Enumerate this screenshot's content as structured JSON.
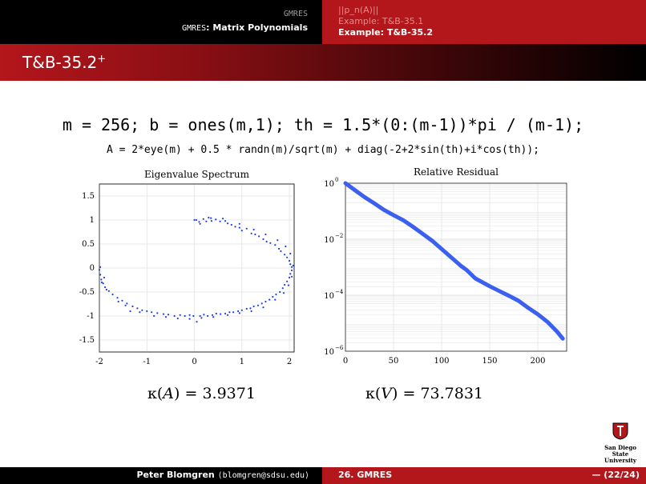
{
  "header": {
    "section_small": "GMRES",
    "section_mono": "GMRES",
    "section_title": ": Matrix Polynomials",
    "nav_items": [
      {
        "label": "||p_n(A)||",
        "active": false
      },
      {
        "label": "Example: T&B-35.1",
        "active": false
      },
      {
        "label": "Example: T&B-35.2",
        "active": true
      }
    ]
  },
  "slide": {
    "title": "T&B-35.2",
    "title_sup": "+",
    "code_line1": "m = 256; b = ones(m,1); th = 1.5*(0:(m-1))*pi / (m-1);",
    "code_line2": "A = 2*eye(m) + 0.5 * randn(m)/sqrt(m) + diag(-2+2*sin(th)+i*cos(th));",
    "kappa_A": {
      "symbol": "κ",
      "arg": "A",
      "value": "= 3.9371"
    },
    "kappa_V": {
      "symbol": "κ",
      "arg": "V",
      "value": "= 73.7831"
    }
  },
  "logo": {
    "line1": "San Diego State",
    "line2": "University"
  },
  "footer": {
    "author": "Peter Blomgren",
    "email": "⟨blomgren@sdsu.edu⟩",
    "section": "26. GMRES",
    "page": "— (22/24)"
  },
  "colors": {
    "accent_red": "#b3161b",
    "marker_blue": "#1f3fe8",
    "line_blue": "#3b5ff0"
  },
  "chart_data": [
    {
      "type": "scatter",
      "title": "Eigenvalue Spectrum",
      "xlim": [
        -2,
        2.1
      ],
      "ylim": [
        -1.75,
        1.75
      ],
      "xticks": [
        -2,
        -1,
        0,
        1,
        2
      ],
      "xtick_labels": [
        "-2",
        "-1",
        "0",
        "1",
        "2"
      ],
      "yticks": [
        1.5,
        1,
        0.5,
        0,
        -0.5,
        -1,
        -1.5
      ],
      "ytick_labels": [
        "1.5",
        "1",
        "0.5",
        "0",
        "-0.5",
        "-1",
        "-1.5"
      ],
      "grid": true,
      "series": [
        {
          "points": [
            [
              -0.0,
              1.0
            ],
            [
              0.04,
              1.0
            ],
            [
              0.19,
              1.02
            ],
            [
              0.12,
              0.92
            ],
            [
              0.25,
              0.97
            ],
            [
              0.3,
              1.05
            ],
            [
              0.36,
              0.98
            ],
            [
              0.45,
              1.01
            ],
            [
              0.54,
              0.97
            ],
            [
              0.6,
              1.03
            ],
            [
              0.7,
              0.93
            ],
            [
              0.78,
              0.9
            ],
            [
              0.86,
              0.86
            ],
            [
              0.95,
              0.84
            ],
            [
              1.0,
              0.78
            ],
            [
              1.1,
              0.82
            ],
            [
              1.2,
              0.72
            ],
            [
              1.28,
              0.7
            ],
            [
              1.36,
              0.66
            ],
            [
              1.45,
              0.6
            ],
            [
              1.52,
              0.55
            ],
            [
              1.6,
              0.52
            ],
            [
              1.7,
              0.48
            ],
            [
              1.78,
              0.4
            ],
            [
              1.82,
              0.35
            ],
            [
              1.9,
              0.28
            ],
            [
              1.95,
              0.22
            ],
            [
              2.0,
              0.15
            ],
            [
              2.02,
              0.08
            ],
            [
              2.05,
              0.02
            ],
            [
              2.05,
              -0.05
            ],
            [
              2.02,
              -0.12
            ],
            [
              2.0,
              -0.2
            ],
            [
              1.95,
              -0.28
            ],
            [
              1.9,
              -0.35
            ],
            [
              1.86,
              -0.42
            ],
            [
              1.8,
              -0.5
            ],
            [
              1.72,
              -0.55
            ],
            [
              1.65,
              -0.6
            ],
            [
              1.58,
              -0.66
            ],
            [
              1.5,
              -0.7
            ],
            [
              1.42,
              -0.74
            ],
            [
              1.34,
              -0.78
            ],
            [
              1.25,
              -0.8
            ],
            [
              1.18,
              -0.84
            ],
            [
              1.1,
              -0.85
            ],
            [
              1.0,
              -0.88
            ],
            [
              0.92,
              -0.9
            ],
            [
              0.82,
              -0.92
            ],
            [
              0.74,
              -0.92
            ],
            [
              0.65,
              -0.95
            ],
            [
              0.55,
              -0.96
            ],
            [
              0.46,
              -0.95
            ],
            [
              0.38,
              -0.98
            ],
            [
              0.28,
              -1.0
            ],
            [
              0.2,
              -0.97
            ],
            [
              0.12,
              -1.0
            ],
            [
              0.05,
              -1.12
            ],
            [
              -0.02,
              -1.0
            ],
            [
              -0.1,
              -0.98
            ],
            [
              -0.2,
              -1.0
            ],
            [
              -0.3,
              -0.98
            ],
            [
              -0.42,
              -1.0
            ],
            [
              -0.55,
              -0.97
            ],
            [
              -0.65,
              -0.96
            ],
            [
              -0.78,
              -0.94
            ],
            [
              -0.9,
              -0.92
            ],
            [
              -1.0,
              -0.9
            ],
            [
              -1.1,
              -0.88
            ],
            [
              -1.2,
              -0.84
            ],
            [
              -1.3,
              -0.8
            ],
            [
              -1.42,
              -0.74
            ],
            [
              -1.52,
              -0.68
            ],
            [
              -1.62,
              -0.62
            ],
            [
              -1.72,
              -0.55
            ],
            [
              -1.8,
              -0.48
            ],
            [
              -1.88,
              -0.4
            ],
            [
              -1.92,
              -0.32
            ],
            [
              -1.96,
              -0.24
            ],
            [
              -1.98,
              -0.14
            ],
            [
              -2.0,
              -0.04
            ],
            [
              -1.98,
              0.02
            ],
            [
              -1.95,
              -0.3
            ],
            [
              -1.9,
              -0.2
            ],
            [
              -1.85,
              -0.45
            ],
            [
              -1.6,
              -0.7
            ],
            [
              -1.45,
              -0.78
            ],
            [
              -1.35,
              -0.9
            ],
            [
              -1.15,
              -0.92
            ],
            [
              -0.85,
              -1.0
            ],
            [
              -0.6,
              -1.02
            ],
            [
              -0.35,
              -1.05
            ],
            [
              -0.1,
              -1.06
            ],
            [
              0.15,
              -1.04
            ],
            [
              0.4,
              -1.02
            ],
            [
              0.7,
              -0.98
            ],
            [
              0.95,
              -0.94
            ],
            [
              1.2,
              -0.9
            ],
            [
              1.45,
              -0.82
            ],
            [
              1.7,
              -0.66
            ],
            [
              1.88,
              -0.52
            ],
            [
              1.98,
              -0.36
            ],
            [
              2.05,
              -0.18
            ],
            [
              2.08,
              0.05
            ],
            [
              2.02,
              0.3
            ],
            [
              1.92,
              0.45
            ],
            [
              1.75,
              0.58
            ],
            [
              1.5,
              0.7
            ],
            [
              1.25,
              0.8
            ],
            [
              0.95,
              0.92
            ],
            [
              0.65,
              0.98
            ],
            [
              0.35,
              1.04
            ],
            [
              0.1,
              0.96
            ]
          ]
        }
      ]
    },
    {
      "type": "line",
      "title": "Relative Residual",
      "yscale": "log",
      "xlim": [
        0,
        230
      ],
      "ylim": [
        1e-06,
        1
      ],
      "xticks": [
        0,
        50,
        100,
        150,
        200
      ],
      "xtick_labels": [
        "0",
        "50",
        "100",
        "150",
        "200"
      ],
      "yticks": [
        0,
        -2,
        -4,
        -6
      ],
      "ytick_labels": [
        "10",
        "10",
        "10",
        "10"
      ],
      "ytick_exponents": [
        "0",
        "−2",
        "−4",
        "−6"
      ],
      "grid": true,
      "series": [
        {
          "x": [
            0,
            10,
            20,
            30,
            40,
            50,
            60,
            70,
            80,
            90,
            100,
            110,
            120,
            126,
            135,
            150,
            160,
            170,
            180,
            190,
            200,
            210,
            220,
            226
          ],
          "log10_y": [
            0,
            -0.25,
            -0.5,
            -0.72,
            -0.95,
            -1.14,
            -1.32,
            -1.55,
            -1.8,
            -2.05,
            -2.35,
            -2.65,
            -2.95,
            -3.1,
            -3.4,
            -3.68,
            -3.85,
            -4.02,
            -4.2,
            -4.45,
            -4.68,
            -4.95,
            -5.3,
            -5.55
          ]
        }
      ]
    }
  ]
}
